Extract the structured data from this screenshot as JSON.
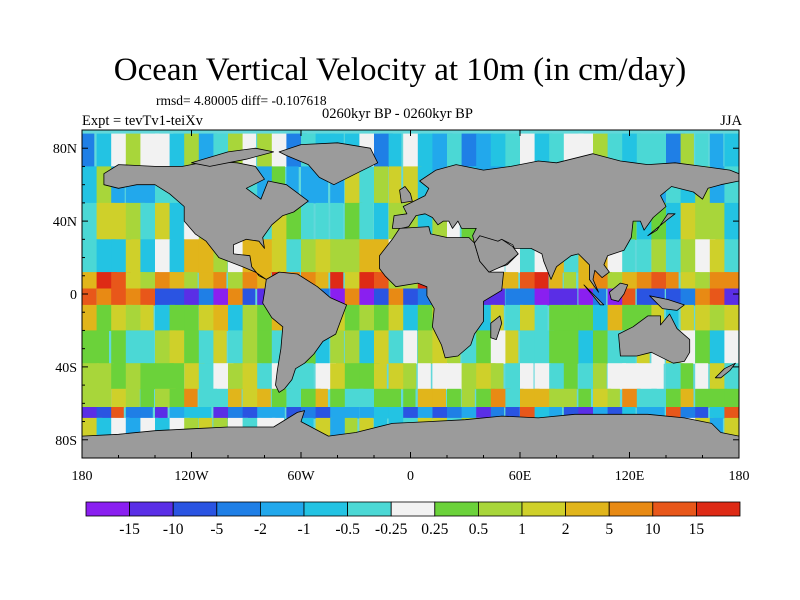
{
  "title": "Ocean Vertical Velocity at 10m (in cm/day)",
  "stats": "rmsd= 4.80005 diff= -0.107618",
  "period": "0260kyr BP - 0260kyr BP",
  "experiment": "Expt = tevTv1-teiXv",
  "season": "JJA",
  "colors": {
    "land": "#9b9b9b",
    "coastline": "#000000"
  },
  "map": {
    "projection": "cylindrical-equidistant",
    "lon_range": [
      -180,
      180
    ],
    "lat_range": [
      -90,
      90
    ],
    "lat_ticks": [
      {
        "value": 80,
        "label": "80N"
      },
      {
        "value": 40,
        "label": "40N"
      },
      {
        "value": 0,
        "label": "0"
      },
      {
        "value": -40,
        "label": "40S"
      },
      {
        "value": -80,
        "label": "80S"
      }
    ],
    "lon_ticks": [
      {
        "value": -180,
        "label": "180"
      },
      {
        "value": -120,
        "label": "120W"
      },
      {
        "value": -60,
        "label": "60W"
      },
      {
        "value": 0,
        "label": "0"
      },
      {
        "value": 60,
        "label": "60E"
      },
      {
        "value": 120,
        "label": "120E"
      },
      {
        "value": 180,
        "label": "180"
      }
    ]
  },
  "colorbar": {
    "labels": [
      "-15",
      "-10",
      "-5",
      "-2",
      "-1",
      "-0.5",
      "-0.25",
      "0.25",
      "0.5",
      "1",
      "2",
      "5",
      "10",
      "15"
    ],
    "colors": [
      "#8a1ff0",
      "#5a2ee6",
      "#2a54e2",
      "#1f7fe6",
      "#22a8ec",
      "#23c3e3",
      "#4bd8d5",
      "#f2f2f2",
      "#6bd23a",
      "#a8d63a",
      "#cfd02a",
      "#e1b51b",
      "#e88a14",
      "#e8571a",
      "#de2a15"
    ]
  }
}
